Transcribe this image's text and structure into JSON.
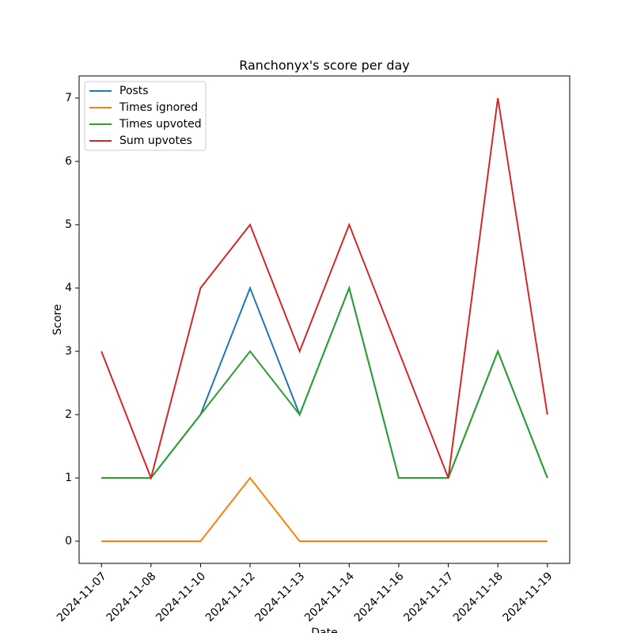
{
  "chart_data": {
    "type": "line",
    "title": "Ranchonyx's score per day",
    "xlabel": "Date",
    "ylabel": "Score",
    "categories": [
      "2024-11-07",
      "2024-11-08",
      "2024-11-10",
      "2024-11-12",
      "2024-11-13",
      "2024-11-14",
      "2024-11-16",
      "2024-11-17",
      "2024-11-18",
      "2024-11-19"
    ],
    "series": [
      {
        "name": "Posts",
        "color": "#1f77b4",
        "values": [
          1,
          1,
          2,
          4,
          2,
          4,
          1,
          1,
          3,
          1
        ]
      },
      {
        "name": "Times ignored",
        "color": "#ff7f0e",
        "values": [
          0,
          0,
          0,
          1,
          0,
          0,
          0,
          0,
          0,
          0
        ]
      },
      {
        "name": "Times upvoted",
        "color": "#2ca02c",
        "values": [
          1,
          1,
          2,
          3,
          2,
          4,
          1,
          1,
          3,
          1
        ]
      },
      {
        "name": "Sum upvotes",
        "color": "#d62728",
        "values": [
          3,
          1,
          4,
          5,
          3,
          5,
          3,
          1,
          7,
          2
        ]
      }
    ],
    "ylim": [
      -0.35,
      7.35
    ],
    "yticks": [
      0,
      1,
      2,
      3,
      4,
      5,
      6,
      7
    ],
    "legend": "upper left"
  }
}
